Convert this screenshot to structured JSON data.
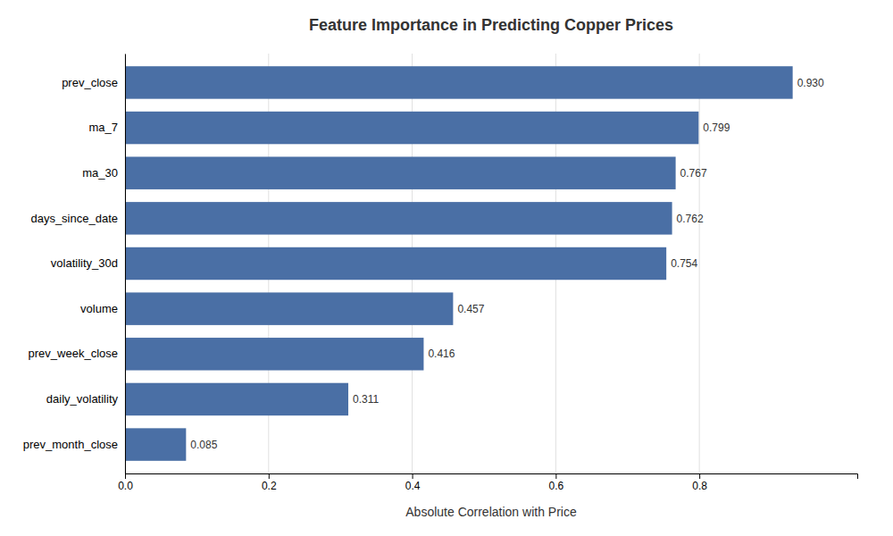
{
  "chart_data": {
    "type": "bar",
    "orientation": "horizontal",
    "title": "Feature Importance in Predicting Copper Prices",
    "xlabel": "Absolute Correlation with Price",
    "categories": [
      "prev_month_close",
      "daily_volatility",
      "prev_week_close",
      "volume",
      "volatility_30d",
      "days_since_date",
      "ma_30",
      "ma_7",
      "prev_close"
    ],
    "values": [
      0.085,
      0.311,
      0.416,
      0.457,
      0.754,
      0.762,
      0.767,
      0.799,
      0.93
    ],
    "value_labels": [
      "0.085",
      "0.311",
      "0.416",
      "0.457",
      "0.754",
      "0.762",
      "0.767",
      "0.799",
      "0.930"
    ],
    "data_labels": true,
    "color": "#4a6fa5",
    "xlim": [
      0,
      1.02
    ],
    "xticks": [
      {
        "value": 0,
        "label": "0.0"
      },
      0.2,
      0.4,
      0.6,
      0.8
    ],
    "grid": true
  }
}
